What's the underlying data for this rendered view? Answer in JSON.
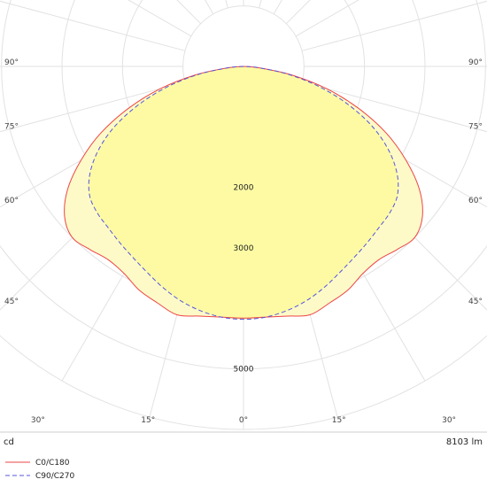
{
  "chart_data": {
    "type": "polar",
    "unit": "cd",
    "luminous_flux": "8103 lm",
    "max_cd": 6000,
    "ring_values": [
      1000,
      2000,
      3000,
      4000,
      5000,
      6000
    ],
    "ring_labels": [
      {
        "value": 2000,
        "label": "2000"
      },
      {
        "value": 3000,
        "label": "3000"
      },
      {
        "value": 5000,
        "label": "5000"
      }
    ],
    "angle_labels": [
      {
        "angle": 90,
        "label": "90°"
      },
      {
        "angle": 75,
        "label": "75°"
      },
      {
        "angle": 60,
        "label": "60°"
      },
      {
        "angle": 45,
        "label": "45°"
      },
      {
        "angle": 30,
        "label": "30°"
      },
      {
        "angle": 15,
        "label": "15°"
      },
      {
        "angle": 0,
        "label": "0°"
      }
    ],
    "series": [
      {
        "name": "C0/C180",
        "color": "#ee4444",
        "dash": false,
        "fill": "#fdfac8",
        "angles": [
          0,
          5,
          10,
          15,
          20,
          25,
          30,
          35,
          40,
          45,
          50,
          55,
          60,
          65,
          70,
          75,
          80,
          85,
          90
        ],
        "values": [
          4160,
          4160,
          4190,
          4250,
          4160,
          4080,
          3950,
          3900,
          3950,
          4000,
          3860,
          3550,
          3100,
          2600,
          2020,
          1420,
          800,
          250,
          0
        ]
      },
      {
        "name": "C90/C270",
        "color": "#5555dd",
        "dash": true,
        "fill": "#fdfa9e",
        "angles": [
          0,
          5,
          10,
          15,
          20,
          25,
          30,
          35,
          40,
          45,
          50,
          55,
          60,
          65,
          70,
          75,
          80,
          85,
          90
        ],
        "values": [
          4180,
          4160,
          4100,
          4010,
          3890,
          3760,
          3650,
          3560,
          3480,
          3420,
          3320,
          3100,
          2770,
          2350,
          1840,
          1300,
          750,
          250,
          0
        ]
      }
    ]
  }
}
